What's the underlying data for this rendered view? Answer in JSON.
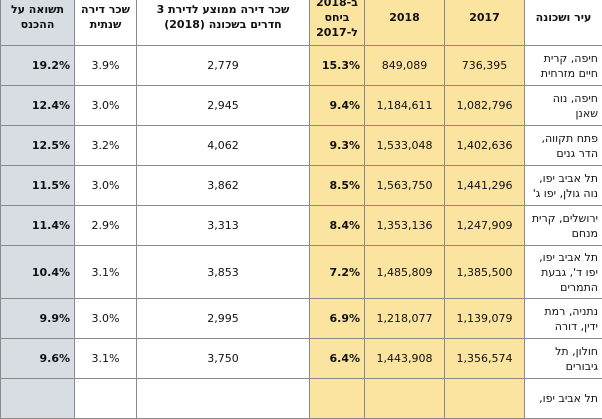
{
  "headers": {
    "city": "עיר ושכונה",
    "y2017": "2017",
    "y2018": "2018",
    "change": "ב-2018 ביחס ל-2017",
    "rooms": "שכר דירה ממוצע לדירת 3 חדרים בשכונה (2018)",
    "rent_rate": "שכר דירה שנתית",
    "yield": "תשואה על ההכנס"
  },
  "rows": [
    {
      "city": "חיפה, קרית חיים מזרחית",
      "v2017": "736,395",
      "v2018": "849,089",
      "change": "15.3%",
      "rooms": "2,779",
      "rent": "3.9%",
      "yield": "19.2%"
    },
    {
      "city": "חיפה, נוה שאנן",
      "v2017": "1,082,796",
      "v2018": "1,184,611",
      "change": "9.4%",
      "rooms": "2,945",
      "rent": "3.0%",
      "yield": "12.4%"
    },
    {
      "city": "פתח תקווה, הדר גנים",
      "v2017": "1,402,636",
      "v2018": "1,533,048",
      "change": "9.3%",
      "rooms": "4,062",
      "rent": "3.2%",
      "yield": "12.5%"
    },
    {
      "city": "תל אביב יפו, נוה גולן, יפו ג'",
      "v2017": "1,441,296",
      "v2018": "1,563,750",
      "change": "8.5%",
      "rooms": "3,862",
      "rent": "3.0%",
      "yield": "11.5%"
    },
    {
      "city": "ירושלים, קרית מנחם",
      "v2017": "1,247,909",
      "v2018": "1,353,136",
      "change": "8.4%",
      "rooms": "3,313",
      "rent": "2.9%",
      "yield": "11.4%"
    },
    {
      "city": "תל אביב יפו, יפו ד', גבעת התמרים",
      "v2017": "1,385,500",
      "v2018": "1,485,809",
      "change": "7.2%",
      "rooms": "3,853",
      "rent": "3.1%",
      "yield": "10.4%",
      "tall": true
    },
    {
      "city": "נתניה, רמת ידין, דורה",
      "v2017": "1,139,079",
      "v2018": "1,218,077",
      "change": "6.9%",
      "rooms": "2,995",
      "rent": "3.0%",
      "yield": "9.9%"
    },
    {
      "city": "חולון, תל גיבורים",
      "v2017": "1,356,574",
      "v2018": "1,443,908",
      "change": "6.4%",
      "rooms": "3,750",
      "rent": "3.1%",
      "yield": "9.6%"
    },
    {
      "city": "תל אביב יפו,",
      "v2017": "",
      "v2018": "",
      "change": "",
      "rooms": "",
      "rent": "",
      "yield": ""
    }
  ]
}
